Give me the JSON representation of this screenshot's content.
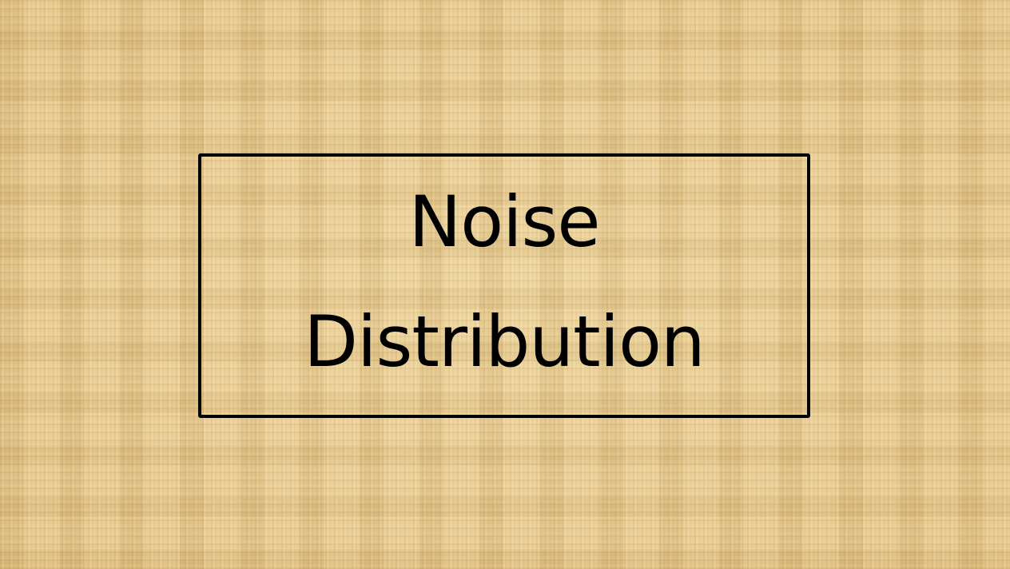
{
  "slide": {
    "title_lines": [
      "Noise",
      "Distribution"
    ]
  },
  "colors": {
    "background": "#e6c98f",
    "text": "#000000",
    "border": "#000000"
  }
}
